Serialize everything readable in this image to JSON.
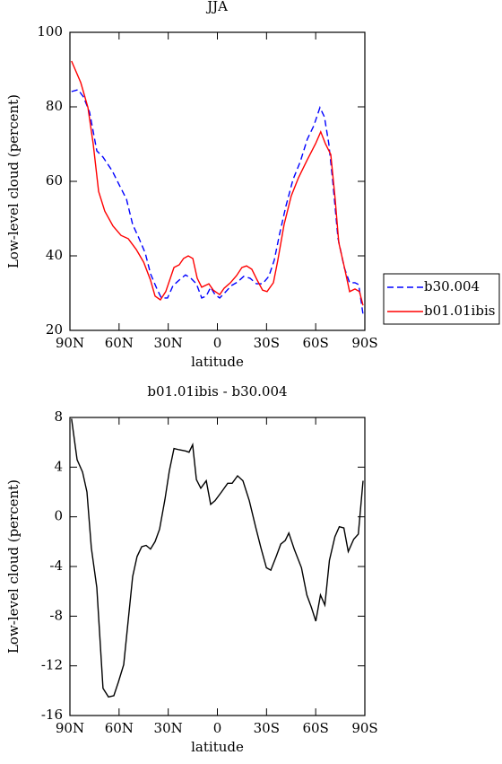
{
  "chart_data": [
    {
      "type": "line",
      "title": "JJA",
      "xlabel": "latitude",
      "ylabel": "Low-level cloud (percent)",
      "xlim": [
        90,
        -90
      ],
      "xticks": [
        {
          "value": 90,
          "label": "90N"
        },
        {
          "value": 60,
          "label": "60N"
        },
        {
          "value": 30,
          "label": "30N"
        },
        0,
        {
          "value": -30,
          "label": "30S"
        },
        {
          "value": -60,
          "label": "60S"
        },
        {
          "value": -90,
          "label": "90S"
        }
      ],
      "ylim": [
        20,
        100
      ],
      "yticks": [
        20,
        40,
        60,
        80,
        100
      ],
      "legend": "right",
      "series": [
        {
          "name": "b30.004",
          "color": "#0000ff",
          "dash": "dashed",
          "x": [
            89,
            85,
            81.8,
            78,
            73.6,
            69.8,
            64.3,
            58.8,
            55.5,
            51.7,
            47.9,
            44,
            40.8,
            36.9,
            34.2,
            30.4,
            27.1,
            23.3,
            19.5,
            16.2,
            12.8,
            9.6,
            6.8,
            4.1,
            1.4,
            -1.4,
            -5.2,
            -8.5,
            -12.3,
            -16.1,
            -19.9,
            -23.8,
            -27.6,
            -31.4,
            -34.7,
            -38,
            -41.8,
            -46.2,
            -50.6,
            -54.9,
            -58.8,
            -62.6,
            -65.3,
            -68,
            -70.3,
            -73.6,
            -77.4,
            -80.7,
            -84,
            -86.2,
            -88.9
          ],
          "values": [
            84.1,
            84.6,
            82.7,
            78.6,
            68.2,
            66.5,
            62.9,
            58.1,
            55.2,
            48.4,
            44.8,
            40.7,
            35.2,
            31.1,
            28.7,
            28.7,
            32,
            33.5,
            34.9,
            34,
            32.5,
            28.7,
            29.2,
            31.6,
            29.6,
            28.7,
            30.4,
            32,
            33,
            34.5,
            34,
            32.5,
            32.5,
            34.5,
            38.8,
            46,
            53.3,
            60.5,
            65.3,
            71.3,
            74.9,
            79.8,
            77.3,
            70.1,
            60.5,
            44.8,
            36.9,
            32.8,
            32.8,
            32.3,
            24.3
          ]
        },
        {
          "name": "b01.01ibis",
          "color": "#ff0000",
          "dash": "solid",
          "x": [
            89,
            83.4,
            79,
            75.8,
            72.5,
            68.7,
            63.7,
            58.8,
            54.4,
            49.5,
            45,
            40.8,
            38,
            34.8,
            31.5,
            26.5,
            23.3,
            20.6,
            17.8,
            15,
            12.3,
            9.6,
            5.2,
            2.5,
            -1.4,
            -4.1,
            -8,
            -11.7,
            -15,
            -17.8,
            -21,
            -24.3,
            -27.6,
            -30.3,
            -34.2,
            -36.9,
            -40.7,
            -45.1,
            -49.5,
            -54.9,
            -59.9,
            -63.1,
            -65.9,
            -69.2,
            -71.9,
            -74.1,
            -77.4,
            -80.7,
            -84,
            -86.7,
            -88.9
          ],
          "values": [
            92.3,
            86.5,
            79.8,
            70,
            57.3,
            52,
            48,
            45.5,
            44.6,
            41.7,
            38.3,
            33.5,
            29.2,
            28.2,
            30.4,
            36.9,
            37.6,
            39.3,
            40,
            39.3,
            34,
            31.6,
            32.5,
            30.8,
            29.6,
            31.3,
            32.8,
            34.7,
            36.9,
            37.3,
            36.4,
            33.5,
            30.8,
            30.4,
            32.8,
            38.8,
            48.4,
            56.1,
            61,
            65.8,
            70.1,
            73.3,
            70.1,
            67.2,
            55.2,
            43.6,
            37.1,
            30.4,
            31.1,
            30.4,
            26.7
          ]
        }
      ]
    },
    {
      "type": "line",
      "title": "b01.01ibis - b30.004",
      "xlabel": "latitude",
      "ylabel": "Low-level cloud (percent)",
      "xlim": [
        90,
        -90
      ],
      "xticks": [
        {
          "value": 90,
          "label": "90N"
        },
        {
          "value": 60,
          "label": "60N"
        },
        {
          "value": 30,
          "label": "30N"
        },
        0,
        {
          "value": -30,
          "label": "30S"
        },
        {
          "value": -60,
          "label": "60S"
        },
        {
          "value": -90,
          "label": "90S"
        }
      ],
      "ylim": [
        -16,
        8
      ],
      "yticks": [
        -16,
        -12,
        -8,
        -4,
        0,
        4,
        8
      ],
      "color": "#000000",
      "x": [
        89,
        85.6,
        82.3,
        79.6,
        76.9,
        73.6,
        69.8,
        66.5,
        63.2,
        60.4,
        57.2,
        51.7,
        49,
        46.2,
        43.5,
        40.8,
        38,
        35.3,
        32,
        29.3,
        26.5,
        23.3,
        19.5,
        17.3,
        15.1,
        12.8,
        10.1,
        6.8,
        4.1,
        1.4,
        -2.5,
        -6.3,
        -9,
        -12.3,
        -15.6,
        -19.5,
        -23.3,
        -26.6,
        -29.9,
        -32.6,
        -35.9,
        -38.7,
        -41.4,
        -43.6,
        -46.9,
        -51.3,
        -54.6,
        -57.4,
        -60.1,
        -62.9,
        -65.6,
        -68.4,
        -71.7,
        -74.4,
        -77.2,
        -79.9,
        -83.2,
        -86,
        -88.9
      ],
      "values": [
        7.9,
        4.6,
        3.6,
        2,
        -2.5,
        -5.7,
        -13.8,
        -14.5,
        -14.4,
        -13.3,
        -11.9,
        -4.8,
        -3.2,
        -2.4,
        -2.3,
        -2.6,
        -2,
        -1,
        1.4,
        3.7,
        5.5,
        5.4,
        5.3,
        5.2,
        5.8,
        3,
        2.3,
        2.9,
        1,
        1.3,
        2,
        2.7,
        2.7,
        3.3,
        2.9,
        1.3,
        -0.8,
        -2.5,
        -4.1,
        -4.3,
        -3.2,
        -2.2,
        -1.9,
        -1.3,
        -2.6,
        -4.1,
        -6.3,
        -7.3,
        -8.4,
        -6.3,
        -7.1,
        -3.5,
        -1.6,
        -0.8,
        -0.9,
        -2.8,
        -1.8,
        -1.4,
        2.9
      ]
    }
  ]
}
